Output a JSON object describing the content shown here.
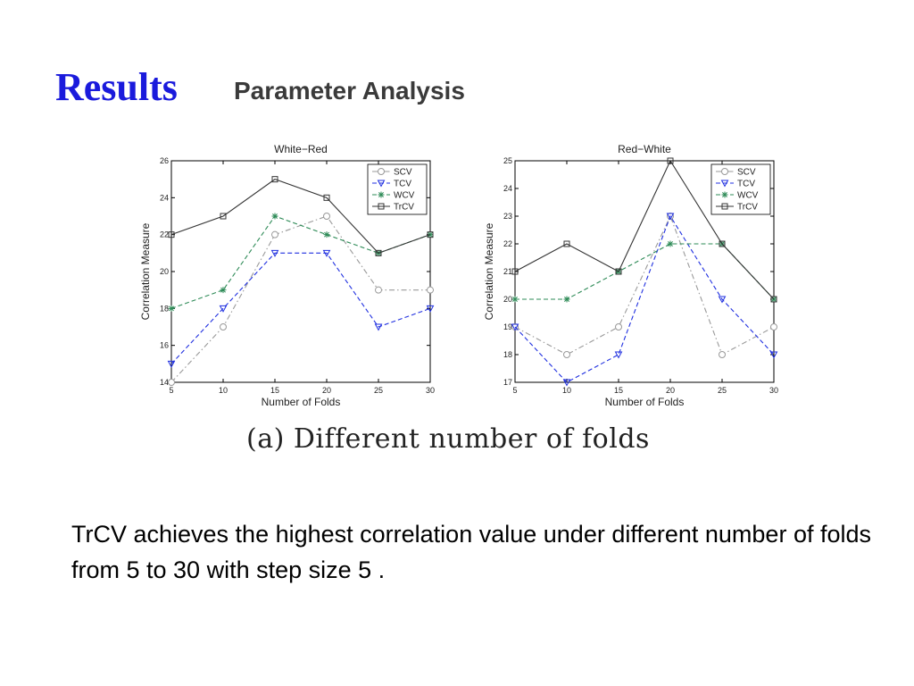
{
  "slide": {
    "title": "Results",
    "subtitle": "Parameter Analysis",
    "caption": "(a) Different number of folds",
    "body": "TrCV achieves the highest correlation value under different number of folds from 5 to 30 with step size 5 ."
  },
  "colors": {
    "title": "#1a1adc",
    "SCV": "#999999",
    "TCV": "#1f2fe0",
    "WCV": "#2e8b57",
    "TrCV": "#333333"
  },
  "chart_data": [
    {
      "type": "line",
      "title": "White−Red",
      "xlabel": "Number of Folds",
      "ylabel": "Correlation Measure",
      "x": [
        5,
        10,
        15,
        20,
        25,
        30
      ],
      "xticks": [
        5,
        10,
        15,
        20,
        25,
        30
      ],
      "yticks": [
        14,
        16,
        18,
        20,
        22,
        24,
        26
      ],
      "ylim": [
        14,
        26
      ],
      "legend": "top-right",
      "series": [
        {
          "name": "SCV",
          "marker": "circle",
          "dash": "dashdot",
          "values": [
            14,
            17,
            22,
            23,
            19,
            19
          ]
        },
        {
          "name": "TCV",
          "marker": "triangle-down",
          "dash": "dash",
          "values": [
            15,
            18,
            21,
            21,
            17,
            18
          ]
        },
        {
          "name": "WCV",
          "marker": "star",
          "dash": "dash",
          "values": [
            18,
            19,
            23,
            22,
            21,
            22
          ]
        },
        {
          "name": "TrCV",
          "marker": "square",
          "dash": "solid",
          "values": [
            22,
            23,
            25,
            24,
            21,
            22
          ]
        }
      ]
    },
    {
      "type": "line",
      "title": "Red−White",
      "xlabel": "Number of Folds",
      "ylabel": "Correlation Measure",
      "x": [
        5,
        10,
        15,
        20,
        25,
        30
      ],
      "xticks": [
        5,
        10,
        15,
        20,
        25,
        30
      ],
      "yticks": [
        17,
        18,
        19,
        20,
        21,
        22,
        23,
        24,
        25
      ],
      "ylim": [
        17,
        25
      ],
      "legend": "top-right",
      "series": [
        {
          "name": "SCV",
          "marker": "circle",
          "dash": "dashdot",
          "values": [
            19,
            18,
            19,
            23,
            18,
            19
          ]
        },
        {
          "name": "TCV",
          "marker": "triangle-down",
          "dash": "dash",
          "values": [
            19,
            17,
            18,
            23,
            20,
            18
          ]
        },
        {
          "name": "WCV",
          "marker": "star",
          "dash": "dash",
          "values": [
            20,
            20,
            21,
            22,
            22,
            20
          ]
        },
        {
          "name": "TrCV",
          "marker": "square",
          "dash": "solid",
          "values": [
            21,
            22,
            21,
            25,
            22,
            20
          ]
        }
      ]
    }
  ]
}
